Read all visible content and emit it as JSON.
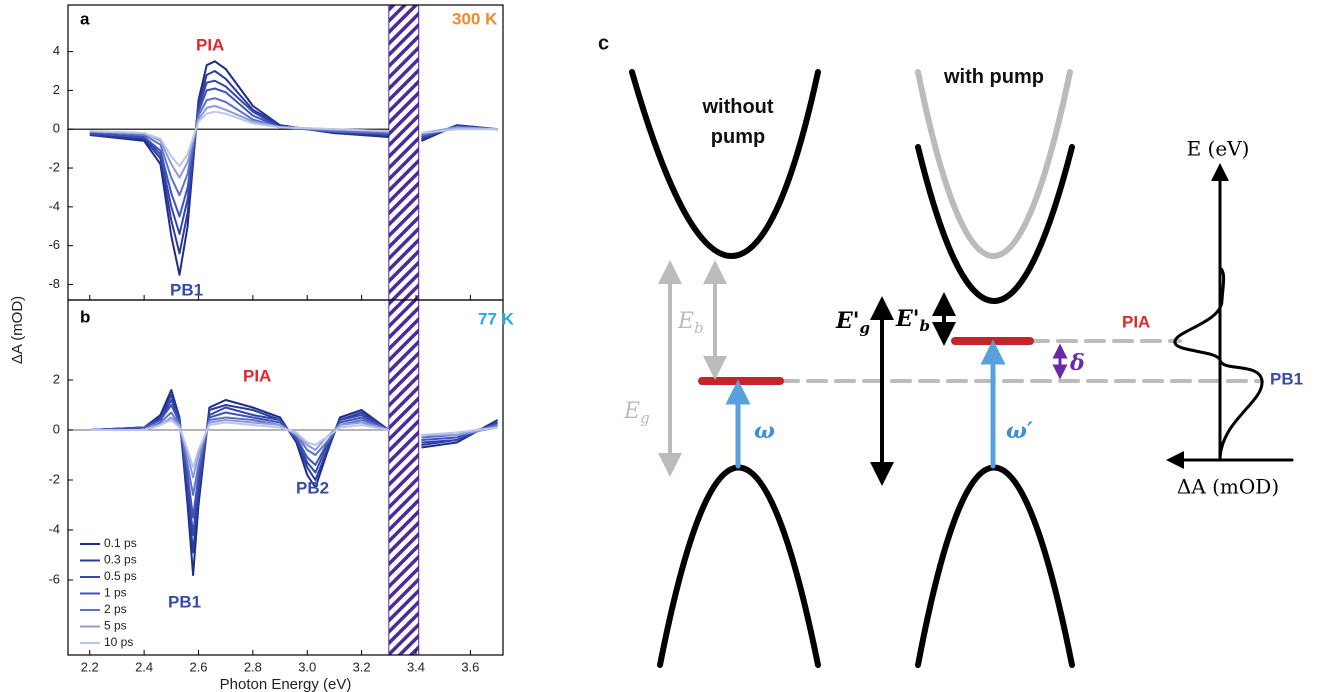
{
  "chart_data": [
    {
      "type": "line",
      "xlim": [
        2.12,
        3.72
      ],
      "ylim": [
        -8.8,
        6.4
      ],
      "yticks": [
        4,
        2,
        0,
        -2,
        -4,
        -6,
        -8
      ],
      "hatch_x": [
        3.3,
        3.41
      ],
      "x": [
        2.2,
        2.4,
        2.46,
        2.5,
        2.53,
        2.56,
        2.6,
        2.63,
        2.66,
        2.7,
        2.8,
        2.9,
        3.1,
        3.3,
        3.35,
        3.42,
        3.55,
        3.7
      ],
      "series": [
        {
          "color": "#1f2d8a",
          "values": [
            -0.3,
            -0.6,
            -1.8,
            -5.5,
            -7.5,
            -5.0,
            1.5,
            3.3,
            3.5,
            3.1,
            1.2,
            0.2,
            -0.2,
            -0.4,
            null,
            -0.6,
            0.2,
            0
          ]
        },
        {
          "color": "#2a3b9e",
          "values": [
            -0.3,
            -0.5,
            -1.5,
            -4.7,
            -6.4,
            -4.3,
            1.3,
            2.8,
            3.0,
            2.6,
            1.0,
            0.2,
            -0.2,
            -0.3,
            null,
            -0.5,
            0.2,
            0
          ]
        },
        {
          "color": "#3446ad",
          "values": [
            -0.2,
            -0.4,
            -1.3,
            -4.0,
            -5.4,
            -3.6,
            1.1,
            2.4,
            2.5,
            2.2,
            0.9,
            0.1,
            -0.1,
            -0.3,
            null,
            -0.4,
            0.1,
            0
          ]
        },
        {
          "color": "#3f54b8",
          "values": [
            -0.2,
            -0.4,
            -1.1,
            -3.3,
            -4.5,
            -3.0,
            0.9,
            2.0,
            2.1,
            1.9,
            0.7,
            0.1,
            -0.1,
            -0.2,
            null,
            -0.4,
            0.1,
            0
          ]
        },
        {
          "color": "#5f72c6",
          "values": [
            -0.1,
            -0.3,
            -0.8,
            -2.5,
            -3.4,
            -2.3,
            0.7,
            1.5,
            1.6,
            1.4,
            0.5,
            0.1,
            -0.1,
            -0.2,
            null,
            -0.3,
            0.1,
            0
          ]
        },
        {
          "color": "#8d9bd6",
          "values": [
            -0.1,
            -0.2,
            -0.6,
            -1.8,
            -2.5,
            -1.7,
            0.5,
            1.1,
            1.2,
            1.0,
            0.4,
            0.1,
            0,
            -0.1,
            null,
            -0.2,
            0.1,
            0
          ]
        },
        {
          "color": "#bcc4e8",
          "values": [
            -0.1,
            -0.2,
            -0.5,
            -1.4,
            -1.9,
            -1.3,
            0.4,
            0.8,
            0.9,
            0.8,
            0.3,
            0.1,
            0,
            -0.1,
            null,
            -0.2,
            0,
            0
          ]
        }
      ],
      "annotations": [
        {
          "text": "a",
          "color": "#000000"
        },
        {
          "text": "PIA",
          "color": "#e0262b"
        },
        {
          "text": "PB1",
          "color": "#3a4aa8"
        },
        {
          "text": "300 K",
          "color": "#f08a2a"
        }
      ]
    },
    {
      "type": "line",
      "xlim": [
        2.12,
        3.72
      ],
      "ylim": [
        -9,
        5.2
      ],
      "yticks": [
        2,
        0,
        -2,
        -4,
        -6
      ],
      "xticks": [
        2.2,
        2.4,
        2.6,
        2.8,
        {
          "value": 3,
          "label": "3.0"
        },
        3.2,
        3.4,
        3.6
      ],
      "xlabel": "Photon Energy (eV)",
      "hatch_x": [
        3.3,
        3.41
      ],
      "legend": "lower left",
      "x": [
        2.2,
        2.4,
        2.46,
        2.5,
        2.53,
        2.56,
        2.58,
        2.6,
        2.64,
        2.7,
        2.8,
        2.9,
        2.96,
        3.0,
        3.03,
        3.07,
        3.12,
        3.2,
        3.3,
        3.35,
        3.42,
        3.55,
        3.7
      ],
      "series": [
        {
          "name": "0.1 ps",
          "color": "#1f2d8a",
          "values": [
            0,
            0.1,
            0.6,
            1.6,
            0.5,
            -3.0,
            -5.8,
            -3.0,
            0.9,
            1.2,
            0.9,
            0.5,
            -0.5,
            -1.8,
            -2.3,
            -1.0,
            0.5,
            0.8,
            0,
            null,
            -0.7,
            -0.5,
            0.4
          ]
        },
        {
          "name": "0.3 ps",
          "color": "#2a3b9e",
          "values": [
            0,
            0.1,
            0.5,
            1.4,
            0.4,
            -2.6,
            -4.9,
            -2.6,
            0.8,
            1.0,
            0.8,
            0.4,
            -0.4,
            -1.5,
            -2.0,
            -0.9,
            0.4,
            0.7,
            0,
            null,
            -0.6,
            -0.4,
            0.3
          ]
        },
        {
          "name": "0.5 ps",
          "color": "#3446ad",
          "values": [
            0,
            0.1,
            0.4,
            1.2,
            0.4,
            -2.2,
            -4.2,
            -2.2,
            0.6,
            0.9,
            0.6,
            0.4,
            -0.4,
            -1.3,
            -1.7,
            -0.7,
            0.4,
            0.6,
            0,
            null,
            -0.5,
            -0.4,
            0.3
          ]
        },
        {
          "name": "1 ps",
          "color": "#3f54b8",
          "values": [
            0,
            0.1,
            0.4,
            1.0,
            0.3,
            -1.8,
            -3.5,
            -1.8,
            0.5,
            0.7,
            0.5,
            0.3,
            -0.3,
            -1.1,
            -1.4,
            -0.6,
            0.3,
            0.5,
            0,
            null,
            -0.4,
            -0.3,
            0.2
          ]
        },
        {
          "name": "2 ps",
          "color": "#5f72c6",
          "values": [
            0,
            0,
            0.3,
            0.7,
            0.2,
            -1.4,
            -2.6,
            -1.4,
            0.4,
            0.5,
            0.4,
            0.2,
            -0.2,
            -0.8,
            -1.0,
            -0.5,
            0.2,
            0.4,
            0,
            null,
            -0.3,
            -0.2,
            0.2
          ]
        },
        {
          "name": "5 ps",
          "color": "#8d9bd6",
          "values": [
            0,
            0,
            0.2,
            0.5,
            0.2,
            -1.0,
            -1.9,
            -1.0,
            0.3,
            0.4,
            0.3,
            0.2,
            -0.2,
            -0.6,
            -0.8,
            -0.3,
            0.2,
            0.3,
            0,
            null,
            -0.2,
            -0.2,
            0.1
          ]
        },
        {
          "name": "10 ps",
          "color": "#bcc4e8",
          "values": [
            0,
            0,
            0.2,
            0.4,
            0.1,
            -0.8,
            -1.5,
            -0.8,
            0.2,
            0.3,
            0.2,
            0.1,
            -0.1,
            -0.5,
            -0.6,
            -0.3,
            0.1,
            0.2,
            0,
            null,
            -0.2,
            -0.1,
            0.1
          ]
        }
      ],
      "annotations": [
        {
          "text": "b",
          "color": "#000000"
        },
        {
          "text": "PIA",
          "color": "#e0262b"
        },
        {
          "text": "PB2",
          "color": "#3a4aa8"
        },
        {
          "text": "PB1",
          "color": "#3a4aa8"
        },
        {
          "text": "77 K",
          "color": "#29a8e0"
        }
      ]
    }
  ],
  "y_axis_label": "ΔA (mOD)",
  "diagram": {
    "label": "c",
    "without_pump": "without pump",
    "with_pump": "with pump",
    "E_g": {
      "main": "E",
      "sub": "g"
    },
    "E_b": {
      "main": "E",
      "sub": "b"
    },
    "E_prime_g": {
      "main": "E'",
      "sub": "g"
    },
    "E_prime_b": {
      "main": "E'",
      "sub": "b"
    },
    "omega": "ω",
    "omega_prime": "ω′",
    "delta": "δ",
    "PIA": "PIA",
    "PB1": "PB1",
    "energy_axis": "E (eV)",
    "absorbance_axis": "ΔA (mOD)"
  }
}
